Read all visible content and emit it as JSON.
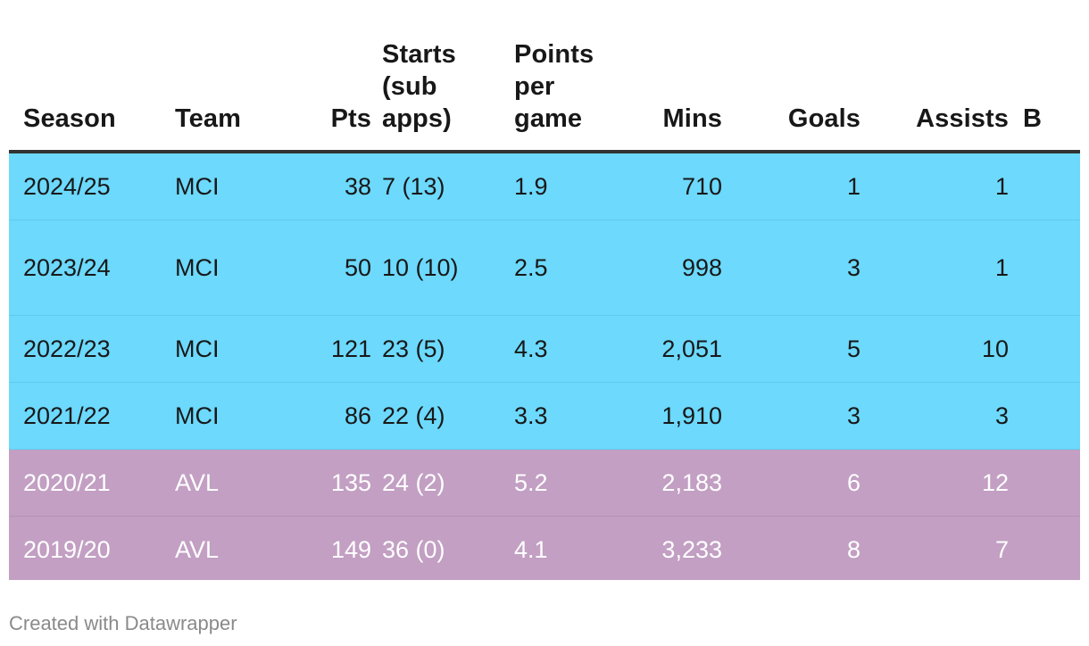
{
  "chart_data": {
    "type": "table",
    "columns": [
      "Season",
      "Team",
      "Pts",
      "Starts (sub apps)",
      "Points per game",
      "Mins",
      "Goals",
      "Assists",
      "B"
    ],
    "rows": [
      {
        "season": "2024/25",
        "team": "MCI",
        "pts": "38",
        "starts": "7 (13)",
        "ppg": "1.9",
        "mins": "710",
        "goals": "1",
        "assists": "1"
      },
      {
        "season": "2023/24",
        "team": "MCI",
        "pts": "50",
        "starts": "10 (10)",
        "ppg": "2.5",
        "mins": "998",
        "goals": "3",
        "assists": "1"
      },
      {
        "season": "2022/23",
        "team": "MCI",
        "pts": "121",
        "starts": "23 (5)",
        "ppg": "4.3",
        "mins": "2,051",
        "goals": "5",
        "assists": "10"
      },
      {
        "season": "2021/22",
        "team": "MCI",
        "pts": "86",
        "starts": "22 (4)",
        "ppg": "3.3",
        "mins": "1,910",
        "goals": "3",
        "assists": "3"
      },
      {
        "season": "2020/21",
        "team": "AVL",
        "pts": "135",
        "starts": "24 (2)",
        "ppg": "5.2",
        "mins": "2,183",
        "goals": "6",
        "assists": "12"
      },
      {
        "season": "2019/20",
        "team": "AVL",
        "pts": "149",
        "starts": "36 (0)",
        "ppg": "4.1",
        "mins": "3,233",
        "goals": "8",
        "assists": "7"
      }
    ],
    "row_colors": {
      "MCI": "#6cd9fd",
      "AVL": "#c29fc3"
    }
  },
  "footer": {
    "credit": "Created with Datawrapper"
  }
}
